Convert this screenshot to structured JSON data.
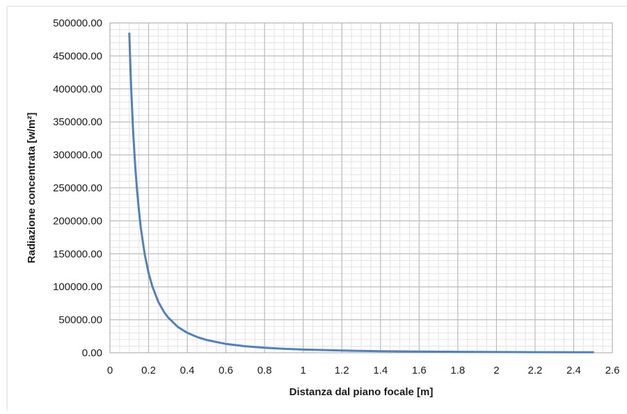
{
  "chart_data": {
    "type": "line",
    "title": "",
    "xlabel": "Distanza dal piano focale  [m]",
    "ylabel": "Radiazione concentrata  [w/m²]",
    "xlim": [
      0,
      2.6
    ],
    "ylim": [
      0,
      500000
    ],
    "x_ticks": [
      0,
      0.2,
      0.4,
      0.6,
      0.8,
      1,
      1.2,
      1.4,
      1.6,
      1.8,
      2,
      2.2,
      2.4,
      2.6
    ],
    "x_tick_labels": [
      "0",
      "0.2",
      "0.4",
      "0.6",
      "0.8",
      "1",
      "1.2",
      "1.4",
      "1.6",
      "1.8",
      "2",
      "2.2",
      "2.4",
      "2.6"
    ],
    "y_ticks": [
      0,
      50000,
      100000,
      150000,
      200000,
      250000,
      300000,
      350000,
      400000,
      450000,
      500000
    ],
    "y_tick_labels": [
      "0.00",
      "50000.00",
      "100000.00",
      "150000.00",
      "200000.00",
      "250000.00",
      "300000.00",
      "350000.00",
      "400000.00",
      "450000.00",
      "500000.00"
    ],
    "minor_grid": {
      "x_step": 0.05,
      "y_step": 10000
    },
    "grid": true,
    "legend": "none",
    "series": [
      {
        "color": "#4f81bd",
        "x": [
          0.1,
          0.11,
          0.12,
          0.13,
          0.14,
          0.15,
          0.16,
          0.18,
          0.2,
          0.22,
          0.25,
          0.28,
          0.3,
          0.35,
          0.4,
          0.45,
          0.5,
          0.6,
          0.7,
          0.8,
          0.9,
          1.0,
          1.2,
          1.4,
          1.6,
          1.8,
          2.0,
          2.2,
          2.4,
          2.5
        ],
        "y": [
          484000,
          400000,
          336000,
          286000,
          247000,
          215000,
          189000,
          149000,
          121000,
          100000,
          77400,
          61700,
          53800,
          39500,
          30300,
          23900,
          19400,
          13400,
          9900,
          7600,
          6000,
          4840,
          3360,
          2470,
          1890,
          1490,
          1210,
          1000,
          840,
          770
        ]
      }
    ]
  }
}
